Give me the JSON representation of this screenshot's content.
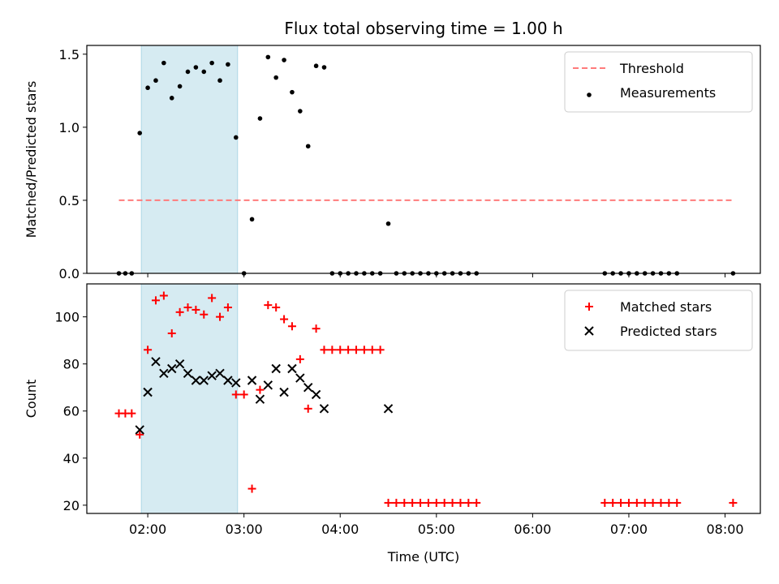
{
  "chart_data": [
    {
      "type": "scatter",
      "title": "Flux total observing time = 1.00 h",
      "xlabel": "",
      "ylabel": "Matched/Predicted stars",
      "xlim": [
        "01:22",
        "08:22"
      ],
      "ylim": [
        0,
        1.56
      ],
      "y_ticks": [
        "0.0",
        "0.5",
        "1.0",
        "1.5"
      ],
      "x_ticks": [
        "02:00",
        "03:00",
        "04:00",
        "05:00",
        "06:00",
        "07:00",
        "08:00"
      ],
      "shaded_span": {
        "start": "01:56",
        "end": "02:56",
        "color": "#add8e6"
      },
      "legend_position": "upper right",
      "threshold": {
        "name": "Threshold",
        "y": 0.5,
        "x_start": "01:42",
        "x_end": "08:05",
        "color": "#ff7b7b"
      },
      "series": [
        {
          "name": "Measurements",
          "color": "#000000",
          "points": [
            [
              "01:42",
              0
            ],
            [
              "01:46",
              0
            ],
            [
              "01:50",
              0
            ],
            [
              "01:55",
              0.96
            ],
            [
              "02:00",
              1.27
            ],
            [
              "02:05",
              1.32
            ],
            [
              "02:10",
              1.44
            ],
            [
              "02:15",
              1.2
            ],
            [
              "02:20",
              1.28
            ],
            [
              "02:25",
              1.38
            ],
            [
              "02:30",
              1.41
            ],
            [
              "02:35",
              1.38
            ],
            [
              "02:40",
              1.44
            ],
            [
              "02:45",
              1.32
            ],
            [
              "02:50",
              1.43
            ],
            [
              "02:55",
              0.93
            ],
            [
              "03:00",
              0
            ],
            [
              "03:05",
              0.37
            ],
            [
              "03:10",
              1.06
            ],
            [
              "03:15",
              1.48
            ],
            [
              "03:20",
              1.34
            ],
            [
              "03:25",
              1.46
            ],
            [
              "03:30",
              1.24
            ],
            [
              "03:35",
              1.11
            ],
            [
              "03:40",
              0.87
            ],
            [
              "03:45",
              1.42
            ],
            [
              "03:50",
              1.41
            ],
            [
              "03:55",
              0
            ],
            [
              "04:00",
              0
            ],
            [
              "04:05",
              0
            ],
            [
              "04:10",
              0
            ],
            [
              "04:15",
              0
            ],
            [
              "04:20",
              0
            ],
            [
              "04:25",
              0
            ],
            [
              "04:30",
              0.34
            ],
            [
              "04:35",
              0
            ],
            [
              "04:40",
              0
            ],
            [
              "04:45",
              0
            ],
            [
              "04:50",
              0
            ],
            [
              "04:55",
              0
            ],
            [
              "05:00",
              0
            ],
            [
              "05:05",
              0
            ],
            [
              "05:10",
              0
            ],
            [
              "05:15",
              0
            ],
            [
              "05:20",
              0
            ],
            [
              "05:25",
              0
            ],
            [
              "06:45",
              0
            ],
            [
              "06:50",
              0
            ],
            [
              "06:55",
              0
            ],
            [
              "07:00",
              0
            ],
            [
              "07:05",
              0
            ],
            [
              "07:10",
              0
            ],
            [
              "07:15",
              0
            ],
            [
              "07:20",
              0
            ],
            [
              "07:25",
              0
            ],
            [
              "07:30",
              0
            ],
            [
              "08:05",
              0
            ]
          ]
        }
      ]
    },
    {
      "type": "scatter",
      "title": "",
      "xlabel": "Time (UTC)",
      "ylabel": "Count",
      "xlim": [
        "01:22",
        "08:22"
      ],
      "ylim": [
        16.5,
        114
      ],
      "y_ticks": [
        "20",
        "40",
        "60",
        "80",
        "100"
      ],
      "x_ticks": [
        "02:00",
        "03:00",
        "04:00",
        "05:00",
        "06:00",
        "07:00",
        "08:00"
      ],
      "shaded_span": {
        "start": "01:56",
        "end": "02:56",
        "color": "#add8e6"
      },
      "legend_position": "upper right",
      "series": [
        {
          "name": "Matched stars",
          "color": "#ff0000",
          "marker": "plus",
          "points": [
            [
              "01:42",
              59
            ],
            [
              "01:46",
              59
            ],
            [
              "01:50",
              59
            ],
            [
              "01:55",
              50
            ],
            [
              "02:00",
              86
            ],
            [
              "02:05",
              107
            ],
            [
              "02:10",
              109
            ],
            [
              "02:15",
              93
            ],
            [
              "02:20",
              102
            ],
            [
              "02:25",
              104
            ],
            [
              "02:30",
              103
            ],
            [
              "02:35",
              101
            ],
            [
              "02:40",
              108
            ],
            [
              "02:45",
              100
            ],
            [
              "02:50",
              104
            ],
            [
              "02:55",
              67
            ],
            [
              "03:00",
              67
            ],
            [
              "03:05",
              27
            ],
            [
              "03:10",
              69
            ],
            [
              "03:15",
              105
            ],
            [
              "03:20",
              104
            ],
            [
              "03:25",
              99
            ],
            [
              "03:30",
              96
            ],
            [
              "03:35",
              82
            ],
            [
              "03:40",
              61
            ],
            [
              "03:45",
              95
            ],
            [
              "03:50",
              86
            ],
            [
              "03:55",
              86
            ],
            [
              "04:00",
              86
            ],
            [
              "04:05",
              86
            ],
            [
              "04:10",
              86
            ],
            [
              "04:15",
              86
            ],
            [
              "04:20",
              86
            ],
            [
              "04:25",
              86
            ],
            [
              "04:30",
              21
            ],
            [
              "04:35",
              21
            ],
            [
              "04:40",
              21
            ],
            [
              "04:45",
              21
            ],
            [
              "04:50",
              21
            ],
            [
              "04:55",
              21
            ],
            [
              "05:00",
              21
            ],
            [
              "05:05",
              21
            ],
            [
              "05:10",
              21
            ],
            [
              "05:15",
              21
            ],
            [
              "05:20",
              21
            ],
            [
              "05:25",
              21
            ],
            [
              "06:45",
              21
            ],
            [
              "06:50",
              21
            ],
            [
              "06:55",
              21
            ],
            [
              "07:00",
              21
            ],
            [
              "07:05",
              21
            ],
            [
              "07:10",
              21
            ],
            [
              "07:15",
              21
            ],
            [
              "07:20",
              21
            ],
            [
              "07:25",
              21
            ],
            [
              "07:30",
              21
            ],
            [
              "08:05",
              21
            ]
          ]
        },
        {
          "name": "Predicted stars",
          "color": "#000000",
          "marker": "x",
          "points": [
            [
              "01:55",
              52
            ],
            [
              "02:00",
              68
            ],
            [
              "02:05",
              81
            ],
            [
              "02:10",
              76
            ],
            [
              "02:15",
              78
            ],
            [
              "02:20",
              80
            ],
            [
              "02:25",
              76
            ],
            [
              "02:30",
              73
            ],
            [
              "02:35",
              73
            ],
            [
              "02:40",
              75
            ],
            [
              "02:45",
              76
            ],
            [
              "02:50",
              73
            ],
            [
              "02:55",
              72
            ],
            [
              "03:05",
              73
            ],
            [
              "03:10",
              65
            ],
            [
              "03:15",
              71
            ],
            [
              "03:20",
              78
            ],
            [
              "03:25",
              68
            ],
            [
              "03:30",
              78
            ],
            [
              "03:35",
              74
            ],
            [
              "03:40",
              70
            ],
            [
              "03:45",
              67
            ],
            [
              "03:50",
              61
            ],
            [
              "04:30",
              61
            ]
          ]
        }
      ]
    }
  ]
}
